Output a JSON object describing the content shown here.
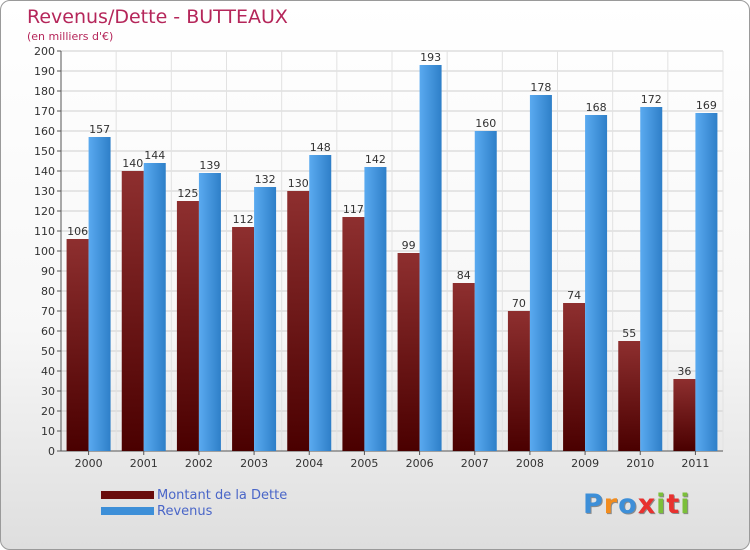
{
  "header": {
    "title": "Revenus/Dette - BUTTEAUX",
    "subtitle": "(en milliers d'€)"
  },
  "chart_data": {
    "type": "bar",
    "title": "Revenus/Dette - BUTTEAUX",
    "subtitle": "(en milliers d'€)",
    "xlabel": "",
    "ylabel": "",
    "ylim": [
      0,
      200
    ],
    "ytick_step": 10,
    "grid": true,
    "legend_position": "bottom-left",
    "categories": [
      "2000",
      "2001",
      "2002",
      "2003",
      "2004",
      "2005",
      "2006",
      "2007",
      "2008",
      "2009",
      "2010",
      "2011"
    ],
    "series": [
      {
        "name": "Montant de la Dette",
        "color": "#8b1a1a",
        "values": [
          106,
          140,
          125,
          112,
          130,
          117,
          99,
          84,
          70,
          74,
          55,
          36
        ]
      },
      {
        "name": "Revenus",
        "color": "#4a9de0",
        "values": [
          157,
          144,
          139,
          132,
          148,
          142,
          193,
          160,
          178,
          168,
          172,
          169
        ]
      }
    ]
  },
  "legend": {
    "items": [
      {
        "label": "Montant de la Dette",
        "color": "#6a0d0d"
      },
      {
        "label": "Revenus",
        "color": "#3d8fd8"
      }
    ]
  },
  "logo": {
    "text": "Proxiti",
    "letter_colors": [
      "#3d8fd8",
      "#f28c1e",
      "#3d8fd8",
      "#e8312f",
      "#7bbf3a",
      "#e8312f",
      "#7bbf3a"
    ]
  }
}
